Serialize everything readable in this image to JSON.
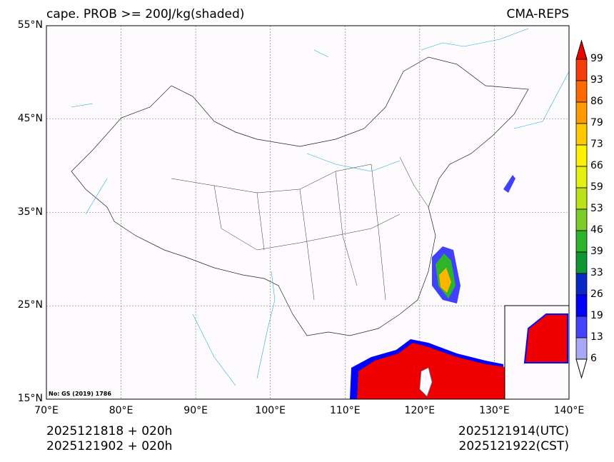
{
  "header": {
    "title_left": "cape. PROB >= 200J/kg(shaded)",
    "title_right": "CMA-REPS"
  },
  "axes": {
    "lat_ticks": [
      "55°N",
      "45°N",
      "35°N",
      "25°N",
      "15°N"
    ],
    "lon_ticks": [
      "70°E",
      "80°E",
      "90°E",
      "100°E",
      "110°E",
      "120°E",
      "130°E",
      "140°E"
    ]
  },
  "map": {
    "credit": "No: GS (2019) 1786",
    "lat_range": [
      15,
      55
    ],
    "lon_range": [
      70,
      140
    ]
  },
  "colorbar": {
    "labels": [
      "99",
      "93",
      "86",
      "79",
      "73",
      "66",
      "59",
      "53",
      "46",
      "39",
      "33",
      "26",
      "19",
      "13",
      "6"
    ],
    "colors": [
      "#f53c0c",
      "#ff6a00",
      "#ff9a00",
      "#ffc800",
      "#fff200",
      "#e4f00e",
      "#bce219",
      "#7ccc2a",
      "#2db42a",
      "#0f9632",
      "#0a28c8",
      "#0000ff",
      "#4444ff",
      "#a8a8f5"
    ],
    "over_color": "#ee0000",
    "under_color": "#ffffff"
  },
  "footer": {
    "init_utc": "2025121818  +  020h",
    "init_cst": "2025121902  +  020h",
    "valid_utc": "2025121914(UTC)",
    "valid_cst": "2025121922(CST)"
  }
}
